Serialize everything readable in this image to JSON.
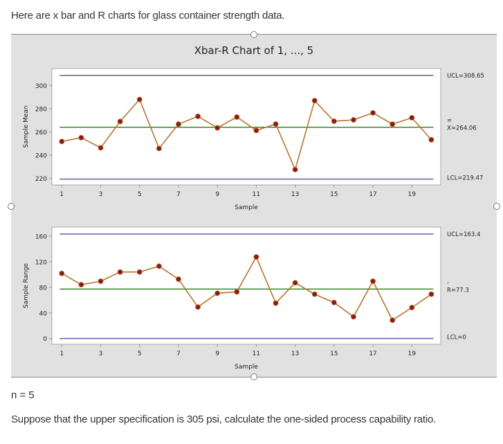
{
  "intro_text": "Here are x bar and R charts for glass container strength data.",
  "chart_title": "Xbar-R Chart of 1, ..., 5",
  "n_text": "n = 5",
  "question_text": "Suppose that the upper specification is 305 psi, calculate the one-sided process capability ratio.",
  "colors": {
    "control_limit": "#6b6bb0",
    "center_line": "#2e7d1a",
    "series_line": "#b5742e",
    "point_fill": "#8b1a1a",
    "frame_bg": "#e1e1e1",
    "plot_bg": "#ffffff"
  },
  "chart_data": [
    {
      "type": "line",
      "title": "Xbar-R Chart of 1, ..., 5",
      "xlabel": "Sample",
      "ylabel": "Sample Mean",
      "x": [
        1,
        2,
        3,
        4,
        5,
        6,
        7,
        8,
        9,
        10,
        11,
        12,
        13,
        14,
        15,
        16,
        17,
        18,
        19,
        20
      ],
      "xticks": [
        "1",
        "3",
        "5",
        "7",
        "9",
        "11",
        "13",
        "15",
        "17",
        "19"
      ],
      "yticks": [
        "220",
        "240",
        "260",
        "280",
        "300"
      ],
      "ylim": [
        215,
        312
      ],
      "values": [
        251.8,
        255.1,
        246.4,
        269.0,
        287.9,
        245.8,
        266.7,
        273.4,
        263.5,
        272.8,
        261.3,
        266.8,
        227.7,
        286.9,
        269.2,
        270.4,
        276.4,
        266.7,
        272.2,
        253.3
      ],
      "ucl": 308.65,
      "center": 264.06,
      "lcl": 219.47,
      "labels": {
        "ucl": "UCL=308.65",
        "center_bar": "=",
        "center": "X=264.06",
        "lcl": "LCL=219.47"
      }
    },
    {
      "type": "line",
      "xlabel": "Sample",
      "ylabel": "Sample Range",
      "x": [
        1,
        2,
        3,
        4,
        5,
        6,
        7,
        8,
        9,
        10,
        11,
        12,
        13,
        14,
        15,
        16,
        17,
        18,
        19,
        20
      ],
      "xticks": [
        "1",
        "3",
        "5",
        "7",
        "9",
        "11",
        "13",
        "15",
        "17",
        "19"
      ],
      "yticks": [
        "0",
        "40",
        "80",
        "120",
        "160"
      ],
      "ylim": [
        -7,
        173
      ],
      "values": [
        101.8,
        84.2,
        89.6,
        104.0,
        104.0,
        113.1,
        92.8,
        49.2,
        70.8,
        73.0,
        127.5,
        55.3,
        87.1,
        69.3,
        56.3,
        34.0,
        89.6,
        28.6,
        48.4,
        69.3
      ],
      "ucl": 163.4,
      "center": 77.3,
      "lcl": 0,
      "labels": {
        "ucl": "UCL=163.4",
        "center_bar": "-",
        "center": "R=77.3",
        "lcl": "LCL=0"
      }
    }
  ]
}
